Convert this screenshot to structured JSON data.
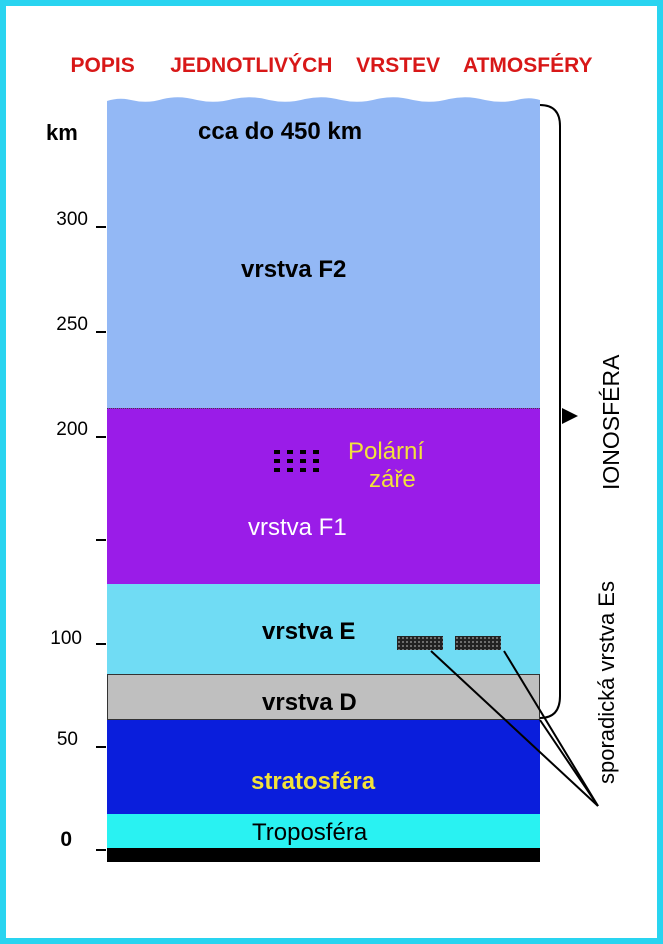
{
  "title": "POPIS   JEDNOTLIVÝCH  VRSTEV  ATMOSFÉRY",
  "axis": {
    "unit": "km",
    "ticks": [
      {
        "label": "300",
        "value": 300
      },
      {
        "label": "250",
        "value": 250
      },
      {
        "label": "200",
        "value": 200
      },
      {
        "label": "",
        "value": 150
      },
      {
        "label": "100",
        "value": 100
      },
      {
        "label": "50",
        "value": 50
      },
      {
        "label": "0",
        "value": 0
      }
    ]
  },
  "layers": {
    "f2": {
      "top_note": "cca  do  450  km",
      "label": "vrstva  F2",
      "color": "#93b8f5"
    },
    "f1": {
      "label": "vrstva  F1",
      "color": "#9a1ce8"
    },
    "aurora": {
      "label_line1": "Polární",
      "label_line2": "záře",
      "color": "#f2e23a"
    },
    "e": {
      "label": "vrstva  E",
      "color": "#70dcf4"
    },
    "d": {
      "label": "vrstva  D",
      "color": "#bfbfbf"
    },
    "stratosphere": {
      "label": "stratosféra",
      "color": "#0a1edc",
      "text_color": "#f2e23a"
    },
    "troposphere": {
      "label": "Troposféra",
      "color": "#29f2f2"
    }
  },
  "ionosphere_label": "IONOSFÉRA",
  "sporadic_label": "sporadická vrstva  Es",
  "colors": {
    "title": "#d81818",
    "frame": "#29d4f0"
  }
}
